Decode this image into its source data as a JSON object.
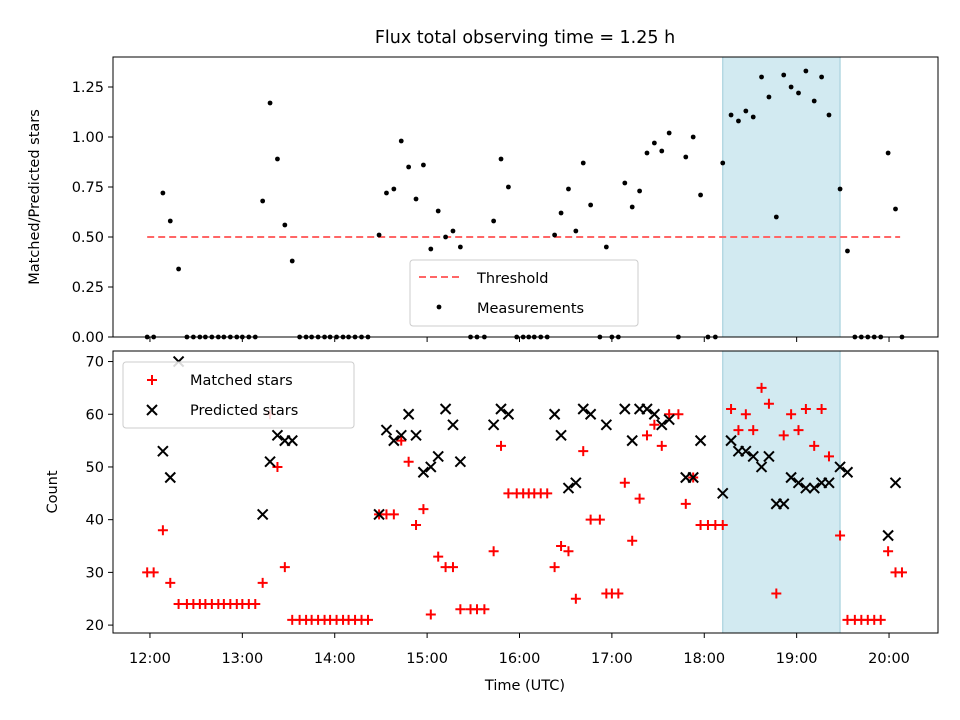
{
  "chart_data": {
    "title": "Flux total observing time = 1.25 h",
    "x_unit": "hours (UTC)",
    "x_tick_labels": [
      "12:00",
      "13:00",
      "14:00",
      "15:00",
      "16:00",
      "17:00",
      "18:00",
      "19:00",
      "20:00"
    ],
    "x_ticks": [
      12,
      13,
      14,
      15,
      16,
      17,
      18,
      19,
      20
    ],
    "xlabel": "Time (UTC)",
    "xlim": [
      11.6,
      20.53
    ],
    "highlight_span": [
      18.2,
      19.47
    ],
    "highlight_color": "#add8e6",
    "top": {
      "type": "scatter",
      "ylabel": "Matched/Predicted stars",
      "ylim": [
        0,
        1.4
      ],
      "y_ticks": [
        0,
        0.25,
        0.5,
        0.75,
        1.0,
        1.25
      ],
      "y_tick_labels": [
        "0.00",
        "0.25",
        "0.50",
        "0.75",
        "1.00",
        "1.25"
      ],
      "threshold": {
        "name": "Threshold",
        "value": 0.5,
        "x_range": [
          11.97,
          20.12
        ],
        "color": "#ff6666"
      },
      "legend": [
        "Threshold",
        "Measurements"
      ],
      "measurements": {
        "name": "Measurements",
        "color": "#000000",
        "points": [
          [
            11.97,
            0
          ],
          [
            12.04,
            0
          ],
          [
            12.14,
            0.72
          ],
          [
            12.22,
            0.58
          ],
          [
            12.31,
            0.34
          ],
          [
            12.4,
            0
          ],
          [
            12.47,
            0
          ],
          [
            12.54,
            0
          ],
          [
            12.6,
            0
          ],
          [
            12.67,
            0
          ],
          [
            12.74,
            0
          ],
          [
            12.8,
            0
          ],
          [
            12.87,
            0
          ],
          [
            12.94,
            0
          ],
          [
            13.0,
            0
          ],
          [
            13.07,
            0
          ],
          [
            13.14,
            0
          ],
          [
            13.22,
            0.68
          ],
          [
            13.3,
            1.17
          ],
          [
            13.38,
            0.89
          ],
          [
            13.46,
            0.56
          ],
          [
            13.54,
            0.38
          ],
          [
            13.62,
            0
          ],
          [
            13.69,
            0
          ],
          [
            13.75,
            0
          ],
          [
            13.82,
            0
          ],
          [
            13.89,
            0
          ],
          [
            13.95,
            0
          ],
          [
            14.02,
            0
          ],
          [
            14.09,
            0
          ],
          [
            14.15,
            0
          ],
          [
            14.22,
            0
          ],
          [
            14.29,
            0
          ],
          [
            14.36,
            0
          ],
          [
            14.48,
            0.51
          ],
          [
            14.56,
            0.72
          ],
          [
            14.64,
            0.74
          ],
          [
            14.72,
            0.98
          ],
          [
            14.8,
            0.85
          ],
          [
            14.88,
            0.69
          ],
          [
            14.96,
            0.86
          ],
          [
            15.04,
            0.44
          ],
          [
            15.12,
            0.63
          ],
          [
            15.2,
            0.5
          ],
          [
            15.28,
            0.53
          ],
          [
            15.36,
            0.45
          ],
          [
            15.47,
            0
          ],
          [
            15.54,
            0
          ],
          [
            15.62,
            0
          ],
          [
            15.72,
            0.58
          ],
          [
            15.8,
            0.89
          ],
          [
            15.88,
            0.75
          ],
          [
            15.97,
            0
          ],
          [
            16.04,
            0
          ],
          [
            16.1,
            0
          ],
          [
            16.16,
            0
          ],
          [
            16.23,
            0
          ],
          [
            16.3,
            0
          ],
          [
            16.38,
            0.51
          ],
          [
            16.45,
            0.62
          ],
          [
            16.53,
            0.74
          ],
          [
            16.61,
            0.53
          ],
          [
            16.69,
            0.87
          ],
          [
            16.77,
            0.66
          ],
          [
            16.87,
            0
          ],
          [
            16.94,
            0.45
          ],
          [
            17.0,
            0
          ],
          [
            17.07,
            0
          ],
          [
            17.14,
            0.77
          ],
          [
            17.22,
            0.65
          ],
          [
            17.3,
            0.73
          ],
          [
            17.38,
            0.92
          ],
          [
            17.46,
            0.97
          ],
          [
            17.54,
            0.93
          ],
          [
            17.62,
            1.02
          ],
          [
            17.72,
            0
          ],
          [
            17.8,
            0.9
          ],
          [
            17.88,
            1.0
          ],
          [
            17.96,
            0.71
          ],
          [
            18.04,
            0
          ],
          [
            18.12,
            0
          ],
          [
            18.2,
            0.87
          ],
          [
            18.29,
            1.11
          ],
          [
            18.37,
            1.08
          ],
          [
            18.45,
            1.13
          ],
          [
            18.53,
            1.1
          ],
          [
            18.62,
            1.3
          ],
          [
            18.7,
            1.2
          ],
          [
            18.78,
            0.6
          ],
          [
            18.86,
            1.31
          ],
          [
            18.94,
            1.25
          ],
          [
            19.02,
            1.22
          ],
          [
            19.1,
            1.33
          ],
          [
            19.19,
            1.18
          ],
          [
            19.27,
            1.3
          ],
          [
            19.35,
            1.11
          ],
          [
            19.47,
            0.74
          ],
          [
            19.55,
            0.43
          ],
          [
            19.63,
            0
          ],
          [
            19.7,
            0
          ],
          [
            19.77,
            0
          ],
          [
            19.84,
            0
          ],
          [
            19.91,
            0
          ],
          [
            19.99,
            0.92
          ],
          [
            20.07,
            0.64
          ],
          [
            20.14,
            0
          ]
        ]
      }
    },
    "bottom": {
      "type": "scatter",
      "ylabel": "Count",
      "ylim": [
        18.5,
        72.0
      ],
      "y_ticks": [
        20,
        30,
        40,
        50,
        60,
        70
      ],
      "y_tick_labels": [
        "20",
        "30",
        "40",
        "50",
        "60",
        "70"
      ],
      "legend": [
        "Matched stars",
        "Predicted stars"
      ],
      "series": [
        {
          "name": "Matched stars",
          "marker": "+",
          "color": "#ff0000",
          "points": [
            [
              11.97,
              30
            ],
            [
              12.04,
              30
            ],
            [
              12.14,
              38
            ],
            [
              12.22,
              28
            ],
            [
              12.31,
              24
            ],
            [
              12.4,
              24
            ],
            [
              12.47,
              24
            ],
            [
              12.54,
              24
            ],
            [
              12.6,
              24
            ],
            [
              12.67,
              24
            ],
            [
              12.74,
              24
            ],
            [
              12.8,
              24
            ],
            [
              12.87,
              24
            ],
            [
              12.94,
              24
            ],
            [
              13.0,
              24
            ],
            [
              13.07,
              24
            ],
            [
              13.14,
              24
            ],
            [
              13.22,
              28
            ],
            [
              13.3,
              60
            ],
            [
              13.38,
              50
            ],
            [
              13.46,
              31
            ],
            [
              13.54,
              21
            ],
            [
              13.62,
              21
            ],
            [
              13.69,
              21
            ],
            [
              13.75,
              21
            ],
            [
              13.82,
              21
            ],
            [
              13.89,
              21
            ],
            [
              13.95,
              21
            ],
            [
              14.02,
              21
            ],
            [
              14.09,
              21
            ],
            [
              14.15,
              21
            ],
            [
              14.22,
              21
            ],
            [
              14.29,
              21
            ],
            [
              14.36,
              21
            ],
            [
              14.48,
              41
            ],
            [
              14.56,
              41
            ],
            [
              14.64,
              41
            ],
            [
              14.72,
              55
            ],
            [
              14.8,
              51
            ],
            [
              14.88,
              39
            ],
            [
              14.96,
              42
            ],
            [
              15.04,
              22
            ],
            [
              15.12,
              33
            ],
            [
              15.2,
              31
            ],
            [
              15.28,
              31
            ],
            [
              15.36,
              23
            ],
            [
              15.47,
              23
            ],
            [
              15.54,
              23
            ],
            [
              15.62,
              23
            ],
            [
              15.72,
              34
            ],
            [
              15.8,
              54
            ],
            [
              15.88,
              45
            ],
            [
              15.97,
              45
            ],
            [
              16.04,
              45
            ],
            [
              16.1,
              45
            ],
            [
              16.16,
              45
            ],
            [
              16.23,
              45
            ],
            [
              16.3,
              45
            ],
            [
              16.38,
              31
            ],
            [
              16.45,
              35
            ],
            [
              16.53,
              34
            ],
            [
              16.61,
              25
            ],
            [
              16.69,
              53
            ],
            [
              16.77,
              40
            ],
            [
              16.87,
              40
            ],
            [
              16.94,
              26
            ],
            [
              17.0,
              26
            ],
            [
              17.07,
              26
            ],
            [
              17.14,
              47
            ],
            [
              17.22,
              36
            ],
            [
              17.3,
              44
            ],
            [
              17.38,
              56
            ],
            [
              17.46,
              58
            ],
            [
              17.54,
              54
            ],
            [
              17.62,
              60
            ],
            [
              17.72,
              60
            ],
            [
              17.8,
              43
            ],
            [
              17.88,
              48
            ],
            [
              17.96,
              39
            ],
            [
              18.04,
              39
            ],
            [
              18.12,
              39
            ],
            [
              18.2,
              39
            ],
            [
              18.29,
              61
            ],
            [
              18.37,
              57
            ],
            [
              18.45,
              60
            ],
            [
              18.53,
              57
            ],
            [
              18.62,
              65
            ],
            [
              18.7,
              62
            ],
            [
              18.78,
              26
            ],
            [
              18.86,
              56
            ],
            [
              18.94,
              60
            ],
            [
              19.02,
              57
            ],
            [
              19.1,
              61
            ],
            [
              19.19,
              54
            ],
            [
              19.27,
              61
            ],
            [
              19.35,
              52
            ],
            [
              19.47,
              37
            ],
            [
              19.55,
              21
            ],
            [
              19.63,
              21
            ],
            [
              19.7,
              21
            ],
            [
              19.77,
              21
            ],
            [
              19.84,
              21
            ],
            [
              19.91,
              21
            ],
            [
              19.99,
              34
            ],
            [
              20.07,
              30
            ],
            [
              20.14,
              30
            ]
          ]
        },
        {
          "name": "Predicted stars",
          "marker": "x",
          "color": "#000000",
          "points": [
            [
              12.14,
              53
            ],
            [
              12.22,
              48
            ],
            [
              12.31,
              70
            ],
            [
              13.22,
              41
            ],
            [
              13.3,
              51
            ],
            [
              13.38,
              56
            ],
            [
              13.46,
              55
            ],
            [
              13.54,
              55
            ],
            [
              14.48,
              41
            ],
            [
              14.56,
              57
            ],
            [
              14.64,
              55
            ],
            [
              14.72,
              56
            ],
            [
              14.8,
              60
            ],
            [
              14.88,
              56
            ],
            [
              14.96,
              49
            ],
            [
              15.04,
              50
            ],
            [
              15.12,
              52
            ],
            [
              15.2,
              61
            ],
            [
              15.28,
              58
            ],
            [
              15.36,
              51
            ],
            [
              15.72,
              58
            ],
            [
              15.8,
              61
            ],
            [
              15.88,
              60
            ],
            [
              16.38,
              60
            ],
            [
              16.45,
              56
            ],
            [
              16.53,
              46
            ],
            [
              16.61,
              47
            ],
            [
              16.69,
              61
            ],
            [
              16.77,
              60
            ],
            [
              16.94,
              58
            ],
            [
              17.14,
              61
            ],
            [
              17.22,
              55
            ],
            [
              17.3,
              61
            ],
            [
              17.38,
              61
            ],
            [
              17.46,
              60
            ],
            [
              17.54,
              58
            ],
            [
              17.62,
              59
            ],
            [
              17.8,
              48
            ],
            [
              17.88,
              48
            ],
            [
              17.96,
              55
            ],
            [
              18.2,
              45
            ],
            [
              18.29,
              55
            ],
            [
              18.37,
              53
            ],
            [
              18.45,
              53
            ],
            [
              18.53,
              52
            ],
            [
              18.62,
              50
            ],
            [
              18.7,
              52
            ],
            [
              18.78,
              43
            ],
            [
              18.86,
              43
            ],
            [
              18.94,
              48
            ],
            [
              19.02,
              47
            ],
            [
              19.1,
              46
            ],
            [
              19.19,
              46
            ],
            [
              19.27,
              47
            ],
            [
              19.35,
              47
            ],
            [
              19.47,
              50
            ],
            [
              19.55,
              49
            ],
            [
              19.99,
              37
            ],
            [
              20.07,
              47
            ]
          ]
        }
      ]
    }
  }
}
